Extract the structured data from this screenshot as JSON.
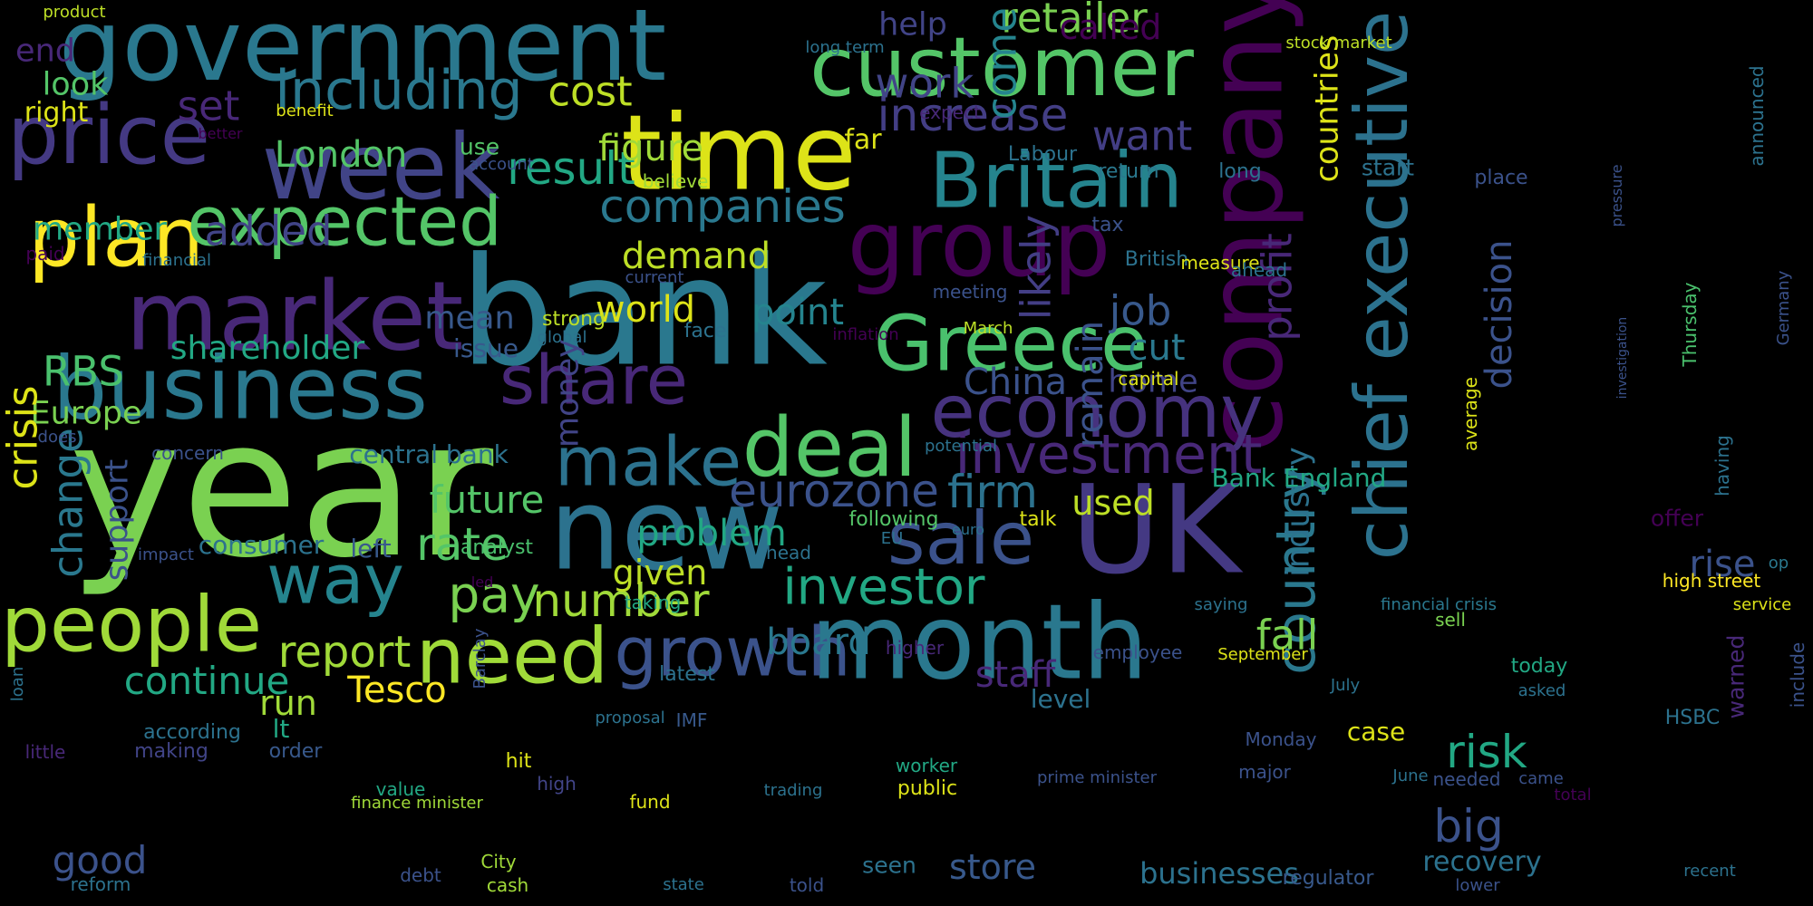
{
  "words": [
    {
      "text": "year",
      "color": "#7ad151"
    },
    {
      "text": "bank",
      "color": "#2a788e"
    },
    {
      "text": "government",
      "color": "#2a788e"
    },
    {
      "text": "company",
      "color": "#440154"
    },
    {
      "text": "new",
      "color": "#2c728e"
    },
    {
      "text": "month",
      "color": "#2a788e"
    },
    {
      "text": "UK",
      "color": "#443983"
    },
    {
      "text": "time",
      "color": "#dde318"
    },
    {
      "text": "market",
      "color": "#482878"
    },
    {
      "text": "business",
      "color": "#2a788e"
    },
    {
      "text": "week",
      "color": "#414487"
    },
    {
      "text": "customer",
      "color": "#54c568"
    },
    {
      "text": "chief executive",
      "color": "#2c728e"
    },
    {
      "text": "group",
      "color": "#440154"
    },
    {
      "text": "price",
      "color": "#443983"
    },
    {
      "text": "Britain",
      "color": "#25848e"
    },
    {
      "text": "deal",
      "color": "#54c568"
    },
    {
      "text": "economy",
      "color": "#46327e"
    },
    {
      "text": "Greece",
      "color": "#4ac16d"
    },
    {
      "text": "people",
      "color": "#a0da39"
    },
    {
      "text": "plan",
      "color": "#fde725"
    },
    {
      "text": "expected",
      "color": "#54c568"
    },
    {
      "text": "sale",
      "color": "#3b528b"
    },
    {
      "text": "need",
      "color": "#a0da39"
    },
    {
      "text": "share",
      "color": "#482878"
    },
    {
      "text": "growth",
      "color": "#3b528b"
    },
    {
      "text": "make",
      "color": "#2c728e"
    },
    {
      "text": "way",
      "color": "#25848e"
    },
    {
      "text": "including",
      "color": "#2a788e"
    },
    {
      "text": "country",
      "color": "#2a788e"
    },
    {
      "text": "investment",
      "color": "#482878"
    },
    {
      "text": "eurozone",
      "color": "#3b528b"
    },
    {
      "text": "investor",
      "color": "#22a884"
    },
    {
      "text": "number",
      "color": "#a0da39"
    },
    {
      "text": "pay",
      "color": "#7ad151"
    },
    {
      "text": "rate",
      "color": "#54c568"
    },
    {
      "text": "future",
      "color": "#54c568"
    },
    {
      "text": "report",
      "color": "#a0da39"
    },
    {
      "text": "continue",
      "color": "#22a884"
    },
    {
      "text": "companies",
      "color": "#2a788e"
    },
    {
      "text": "increase",
      "color": "#433e85"
    },
    {
      "text": "result",
      "color": "#22a884"
    },
    {
      "text": "cost",
      "color": "#bddf26"
    },
    {
      "text": "retailer",
      "color": "#7ad151"
    },
    {
      "text": "profit",
      "color": "#482878"
    },
    {
      "text": "countries",
      "color": "#dde318"
    },
    {
      "text": "industry",
      "color": "#2c728e"
    },
    {
      "text": "come",
      "color": "#25848e"
    },
    {
      "text": "likely",
      "color": "#433e85"
    },
    {
      "text": "remain",
      "color": "#3b528b"
    },
    {
      "text": "decision",
      "color": "#3b528b"
    },
    {
      "text": "firm",
      "color": "#2c728e"
    },
    {
      "text": "work",
      "color": "#414487"
    },
    {
      "text": "want",
      "color": "#433e85"
    },
    {
      "text": "job",
      "color": "#38598c"
    },
    {
      "text": "China",
      "color": "#3b528b"
    },
    {
      "text": "cut",
      "color": "#2a788e"
    },
    {
      "text": "home",
      "color": "#414487"
    },
    {
      "text": "London",
      "color": "#54c568"
    },
    {
      "text": "figure",
      "color": "#a0da39"
    },
    {
      "text": "added",
      "color": "#414487"
    },
    {
      "text": "demand",
      "color": "#bddf26"
    },
    {
      "text": "world",
      "color": "#dde318"
    },
    {
      "text": "point",
      "color": "#25848e"
    },
    {
      "text": "member",
      "color": "#22a884"
    },
    {
      "text": "shareholder",
      "color": "#22a884"
    },
    {
      "text": "RBS",
      "color": "#4ac16d"
    },
    {
      "text": "Europe",
      "color": "#7ad151"
    },
    {
      "text": "crisis",
      "color": "#dde318"
    },
    {
      "text": "change",
      "color": "#2a788e"
    },
    {
      "text": "support",
      "color": "#3b528b"
    },
    {
      "text": "problem",
      "color": "#22a884"
    },
    {
      "text": "given",
      "color": "#bddf26"
    },
    {
      "text": "money",
      "color": "#414487"
    },
    {
      "text": "board",
      "color": "#2a788e"
    },
    {
      "text": "Tesco",
      "color": "#fde725"
    },
    {
      "text": "run",
      "color": "#a0da39"
    },
    {
      "text": "risk",
      "color": "#22a884"
    },
    {
      "text": "big",
      "color": "#3b528b"
    },
    {
      "text": "fall",
      "color": "#7ad151"
    },
    {
      "text": "staff",
      "color": "#482878"
    },
    {
      "text": "store",
      "color": "#38598c"
    },
    {
      "text": "businesses",
      "color": "#2c728e"
    },
    {
      "text": "recovery",
      "color": "#2c728e"
    },
    {
      "text": "good",
      "color": "#3b528b"
    },
    {
      "text": "rise",
      "color": "#3b528b"
    },
    {
      "text": "used",
      "color": "#bddf26"
    },
    {
      "text": "Bank England",
      "color": "#22a884"
    },
    {
      "text": "look",
      "color": "#54c568"
    },
    {
      "text": "right",
      "color": "#dde318"
    },
    {
      "text": "set",
      "color": "#482878"
    },
    {
      "text": "end",
      "color": "#482878"
    },
    {
      "text": "help",
      "color": "#414487"
    },
    {
      "text": "called",
      "color": "#440154"
    },
    {
      "text": "far",
      "color": "#dde318"
    },
    {
      "text": "mean",
      "color": "#38598c"
    },
    {
      "text": "issue",
      "color": "#38598c"
    },
    {
      "text": "strong",
      "color": "#bddf26"
    },
    {
      "text": "central bank",
      "color": "#2c728e"
    },
    {
      "text": "consumer",
      "color": "#2c728e"
    },
    {
      "text": "left",
      "color": "#38598c"
    },
    {
      "text": "analyst",
      "color": "#4ac16d"
    },
    {
      "text": "according",
      "color": "#2c728e"
    },
    {
      "text": "lt",
      "color": "#22a884"
    },
    {
      "text": "case",
      "color": "#dde318"
    },
    {
      "text": "level",
      "color": "#2c728e"
    },
    {
      "text": "hit",
      "color": "#dde318"
    },
    {
      "text": "use",
      "color": "#54c568"
    },
    {
      "text": "making",
      "color": "#414487"
    },
    {
      "text": "order",
      "color": "#38598c"
    },
    {
      "text": "Labour",
      "color": "#2c728e"
    },
    {
      "text": "return",
      "color": "#2a788e"
    },
    {
      "text": "long",
      "color": "#2c728e"
    },
    {
      "text": "start",
      "color": "#2c728e"
    },
    {
      "text": "place",
      "color": "#3b528b"
    },
    {
      "text": "tax",
      "color": "#3b528b"
    },
    {
      "text": "British",
      "color": "#2c728e"
    },
    {
      "text": "measure",
      "color": "#dde318"
    },
    {
      "text": "ahead",
      "color": "#2c728e"
    },
    {
      "text": "meeting",
      "color": "#3b528b"
    },
    {
      "text": "capital",
      "color": "#dde318"
    },
    {
      "text": "believe",
      "color": "#a0da39"
    },
    {
      "text": "talk",
      "color": "#dde318"
    },
    {
      "text": "following",
      "color": "#54c568"
    },
    {
      "text": "head",
      "color": "#2c728e"
    },
    {
      "text": "taking",
      "color": "#22a884"
    },
    {
      "text": "face",
      "color": "#2c728e"
    },
    {
      "text": "offer",
      "color": "#440154"
    },
    {
      "text": "high street",
      "color": "#fde725"
    },
    {
      "text": "service",
      "color": "#dde318"
    },
    {
      "text": "op",
      "color": "#2a788e"
    },
    {
      "text": "sell",
      "color": "#7ad151"
    },
    {
      "text": "today",
      "color": "#22a884"
    },
    {
      "text": "asked",
      "color": "#2c728e"
    },
    {
      "text": "HSBC",
      "color": "#2c728e"
    },
    {
      "text": "employee",
      "color": "#3b528b"
    },
    {
      "text": "September",
      "color": "#dde318"
    },
    {
      "text": "July",
      "color": "#2c728e"
    },
    {
      "text": "Monday",
      "color": "#3b528b"
    },
    {
      "text": "major",
      "color": "#3b528b"
    },
    {
      "text": "needed",
      "color": "#3b528b"
    },
    {
      "text": "came",
      "color": "#3b528b"
    },
    {
      "text": "total",
      "color": "#440154"
    },
    {
      "text": "June",
      "color": "#2c728e"
    },
    {
      "text": "worker",
      "color": "#22a884"
    },
    {
      "text": "public",
      "color": "#dde318"
    },
    {
      "text": "trading",
      "color": "#2c728e"
    },
    {
      "text": "fund",
      "color": "#dde318"
    },
    {
      "text": "higher",
      "color": "#482878"
    },
    {
      "text": "latest",
      "color": "#2c728e"
    },
    {
      "text": "IMF",
      "color": "#38598c"
    },
    {
      "text": "proposal",
      "color": "#2c728e"
    },
    {
      "text": "value",
      "color": "#22a884"
    },
    {
      "text": "high",
      "color": "#414487"
    },
    {
      "text": "finance minister",
      "color": "#a0da39"
    },
    {
      "text": "prime minister",
      "color": "#3b528b"
    },
    {
      "text": "seen",
      "color": "#2c728e"
    },
    {
      "text": "debt",
      "color": "#3b528b"
    },
    {
      "text": "City",
      "color": "#a0da39"
    },
    {
      "text": "cash",
      "color": "#a0da39"
    },
    {
      "text": "state",
      "color": "#2c728e"
    },
    {
      "text": "told",
      "color": "#3b528b"
    },
    {
      "text": "regulator",
      "color": "#38598c"
    },
    {
      "text": "lower",
      "color": "#3b528b"
    },
    {
      "text": "recent",
      "color": "#2c728e"
    },
    {
      "text": "reform",
      "color": "#2c728e"
    },
    {
      "text": "little",
      "color": "#482878"
    },
    {
      "text": "loan",
      "color": "#2c728e"
    },
    {
      "text": "impact",
      "color": "#3b528b"
    },
    {
      "text": "does",
      "color": "#3b528b"
    },
    {
      "text": "concern",
      "color": "#3b528b"
    },
    {
      "text": "paid",
      "color": "#440154"
    },
    {
      "text": "financial",
      "color": "#2c728e"
    },
    {
      "text": "current",
      "color": "#3b528b"
    },
    {
      "text": "global",
      "color": "#2c728e"
    },
    {
      "text": "inflation",
      "color": "#440154"
    },
    {
      "text": "March",
      "color": "#bddf26"
    },
    {
      "text": "potential",
      "color": "#2c728e"
    },
    {
      "text": "EU",
      "color": "#2c728e"
    },
    {
      "text": "euro",
      "color": "#2c728e"
    },
    {
      "text": "led",
      "color": "#440154"
    },
    {
      "text": "Barclay",
      "color": "#3b528b"
    },
    {
      "text": "saying",
      "color": "#2c728e"
    },
    {
      "text": "financial crisis",
      "color": "#2a788e"
    },
    {
      "text": "product",
      "color": "#bddf26"
    },
    {
      "text": "benefit",
      "color": "#dde318"
    },
    {
      "text": "better",
      "color": "#440154"
    },
    {
      "text": "account",
      "color": "#3b528b"
    },
    {
      "text": "long term",
      "color": "#2c728e"
    },
    {
      "text": "stock market",
      "color": "#bddf26"
    },
    {
      "text": "expect",
      "color": "#482878"
    },
    {
      "text": "pressure",
      "color": "#3b528b"
    },
    {
      "text": "investigation",
      "color": "#3b528b"
    },
    {
      "text": "average",
      "color": "#dde318"
    },
    {
      "text": "Thursday",
      "color": "#4ac16d"
    },
    {
      "text": "Germany",
      "color": "#3b528b"
    },
    {
      "text": "having",
      "color": "#2c728e"
    },
    {
      "text": "announced",
      "color": "#2c728e"
    },
    {
      "text": "warned",
      "color": "#482878"
    },
    {
      "text": "include",
      "color": "#3b528b"
    }
  ]
}
